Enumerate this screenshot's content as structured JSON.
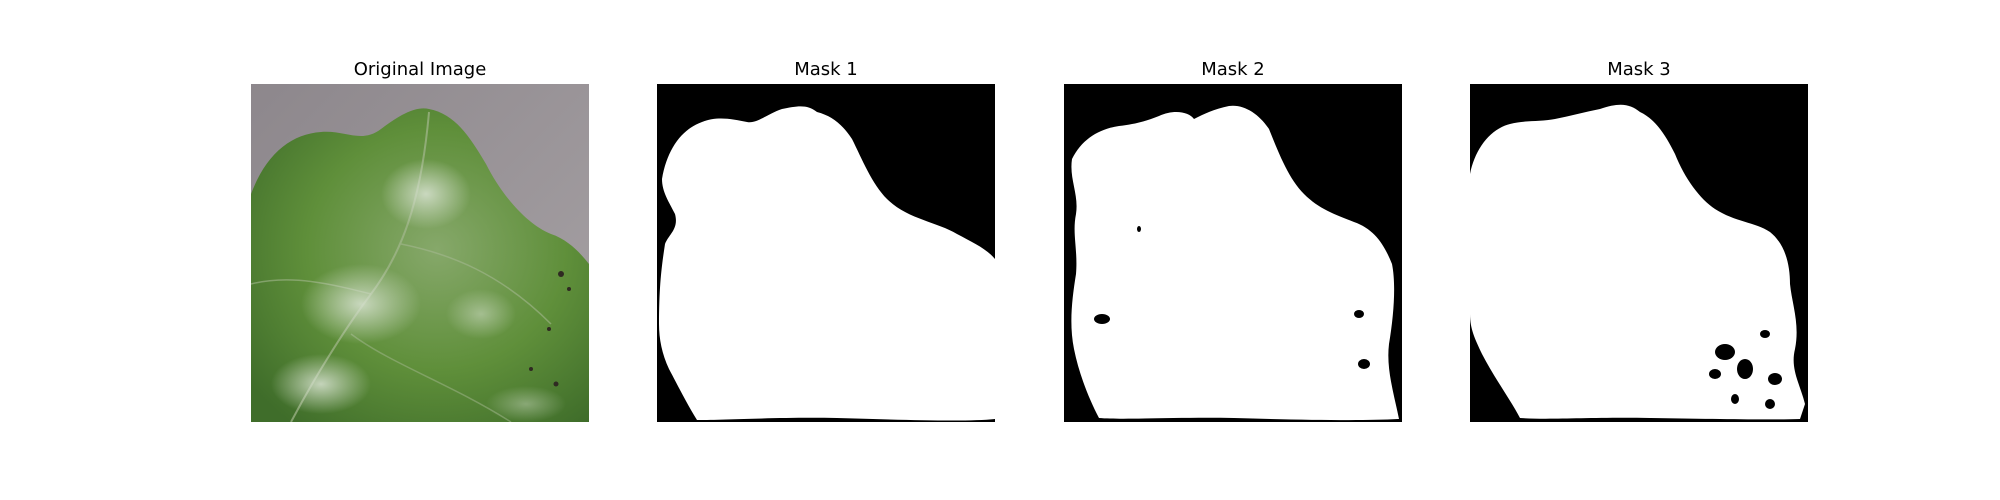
{
  "figure": {
    "panels": [
      {
        "title": "Original Image",
        "kind": "photo"
      },
      {
        "title": "Mask 1",
        "kind": "mask"
      },
      {
        "title": "Mask 2",
        "kind": "mask"
      },
      {
        "title": "Mask 3",
        "kind": "mask"
      }
    ],
    "colors": {
      "background": "#ffffff",
      "mask_background": "#000000",
      "mask_foreground": "#ffffff",
      "leaf_green": "#5f8f3a",
      "photo_background": "#9a9499"
    }
  }
}
